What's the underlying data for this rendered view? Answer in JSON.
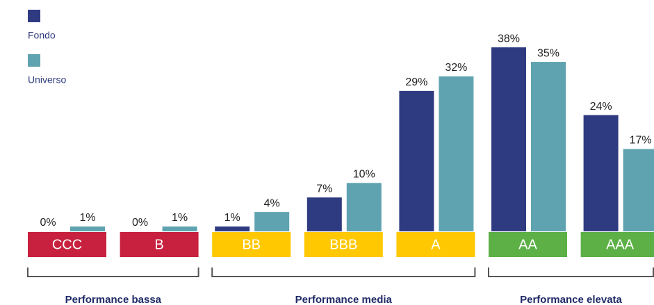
{
  "chart_data": {
    "type": "bar",
    "groups": [
      {
        "name": "Performance bassa",
        "color": "#c8213f",
        "categories": [
          "CCC",
          "B"
        ]
      },
      {
        "name": "Performance media",
        "color": "#ffc800",
        "categories": [
          "BB",
          "BBB",
          "A"
        ]
      },
      {
        "name": "Performance elevata",
        "color": "#5cb046",
        "categories": [
          "AA",
          "AAA"
        ]
      }
    ],
    "series": [
      {
        "name": "Fondo",
        "color": "#2f3b80",
        "values": [
          0,
          0,
          1,
          7,
          29,
          38,
          24
        ],
        "value_labels": [
          "0%",
          "0%",
          "1%",
          "7%",
          "29%",
          "38%",
          "24%"
        ]
      },
      {
        "name": "Universo",
        "color": "#5fa3b0",
        "values": [
          1,
          1,
          4,
          10,
          32,
          35,
          17
        ],
        "value_labels": [
          "1%",
          "1%",
          "4%",
          "10%",
          "32%",
          "35%",
          "17%"
        ]
      }
    ]
  }
}
